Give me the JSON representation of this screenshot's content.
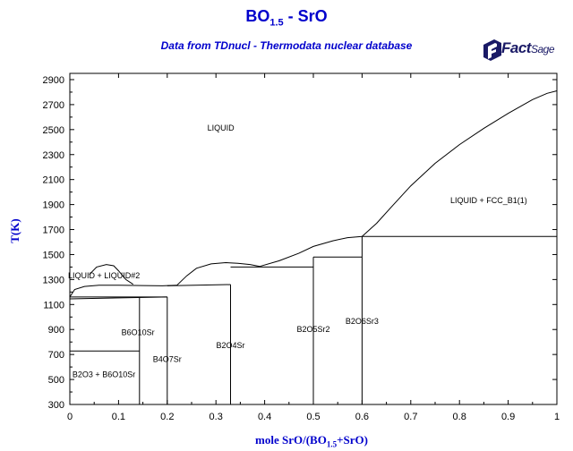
{
  "header": {
    "title_main": "BO",
    "title_sub": "1.5",
    "title_rest": " - SrO",
    "subtitle": "Data from TDnucl - Thermodata nuclear database"
  },
  "logo": {
    "text_fact": "Fact",
    "text_sage": "Sage",
    "icon": "factsage-logo-icon"
  },
  "chart_data": {
    "type": "line",
    "xlabel_main": "mole SrO/(BO",
    "xlabel_sub": "1.5",
    "xlabel_rest": "+SrO)",
    "ylabel": "T(K)",
    "xlim": [
      0,
      1
    ],
    "ylim": [
      300,
      2950
    ],
    "x_ticks": [
      0,
      0.1,
      0.2,
      0.3,
      0.4,
      0.5,
      0.6,
      0.7,
      0.8,
      0.9,
      1
    ],
    "x_tick_labels": [
      "0",
      "0.1",
      "0.2",
      "0.3",
      "0.4",
      "0.5",
      "0.6",
      "0.7",
      "0.8",
      "0.9",
      "1"
    ],
    "y_ticks": [
      300,
      500,
      700,
      900,
      1100,
      1300,
      1500,
      1700,
      1900,
      2100,
      2300,
      2500,
      2700,
      2900
    ],
    "y_tick_labels": [
      "300",
      "500",
      "700",
      "900",
      "1100",
      "1300",
      "1500",
      "1700",
      "1900",
      "2100",
      "2300",
      "2500",
      "2700",
      "2900"
    ],
    "grid": false,
    "curves": [
      {
        "points": [
          [
            0,
            1160
          ],
          [
            0.01,
            1220
          ],
          [
            0.03,
            1245
          ],
          [
            0.06,
            1255
          ],
          [
            0.1,
            1255
          ],
          [
            0.15,
            1252
          ],
          [
            0.19,
            1250
          ],
          [
            0.22,
            1255
          ]
        ]
      },
      {
        "points": [
          [
            0.04,
            1340
          ],
          [
            0.055,
            1400
          ],
          [
            0.075,
            1420
          ],
          [
            0.09,
            1410
          ],
          [
            0.1,
            1370
          ],
          [
            0.115,
            1300
          ],
          [
            0.13,
            1262
          ]
        ]
      },
      {
        "points": [
          [
            0.22,
            1255
          ],
          [
            0.24,
            1330
          ],
          [
            0.26,
            1390
          ],
          [
            0.29,
            1425
          ],
          [
            0.32,
            1435
          ],
          [
            0.345,
            1430
          ],
          [
            0.37,
            1420
          ],
          [
            0.39,
            1405
          ]
        ]
      },
      {
        "points": [
          [
            0.39,
            1405
          ],
          [
            0.43,
            1450
          ],
          [
            0.47,
            1510
          ],
          [
            0.5,
            1565
          ],
          [
            0.54,
            1610
          ],
          [
            0.57,
            1635
          ],
          [
            0.6,
            1645
          ]
        ]
      },
      {
        "points": [
          [
            0.6,
            1645
          ],
          [
            0.63,
            1750
          ],
          [
            0.66,
            1880
          ],
          [
            0.7,
            2050
          ],
          [
            0.75,
            2230
          ],
          [
            0.8,
            2380
          ],
          [
            0.85,
            2510
          ],
          [
            0.9,
            2630
          ],
          [
            0.95,
            2740
          ],
          [
            0.98,
            2790
          ],
          [
            1,
            2810
          ]
        ]
      },
      {
        "points": [
          [
            0,
            1145
          ],
          [
            0.2,
            1160
          ]
        ]
      },
      {
        "points": [
          [
            0,
            1160
          ],
          [
            0.2,
            1160
          ]
        ]
      },
      {
        "points": [
          [
            0.2,
            1160
          ],
          [
            0.2,
            300
          ]
        ]
      },
      {
        "points": [
          [
            0.2,
            1250
          ],
          [
            0.33,
            1260
          ]
        ]
      },
      {
        "points": [
          [
            0.33,
            1260
          ],
          [
            0.33,
            300
          ]
        ]
      },
      {
        "points": [
          [
            0.33,
            1400
          ],
          [
            0.5,
            1400
          ]
        ]
      },
      {
        "points": [
          [
            0.5,
            1480
          ],
          [
            0.5,
            300
          ]
        ]
      },
      {
        "points": [
          [
            0.5,
            1480
          ],
          [
            0.6,
            1480
          ]
        ]
      },
      {
        "points": [
          [
            0.6,
            1645
          ],
          [
            0.6,
            300
          ]
        ]
      },
      {
        "points": [
          [
            0.6,
            1645
          ],
          [
            1,
            1645
          ]
        ]
      },
      {
        "points": [
          [
            0,
            728
          ],
          [
            0.143,
            728
          ]
        ]
      },
      {
        "points": [
          [
            0.143,
            1160
          ],
          [
            0.143,
            300
          ]
        ]
      }
    ],
    "region_labels": [
      {
        "text": "LIQUID",
        "x": 0.31,
        "y": 2490
      },
      {
        "text": "LIQUID + FCC_B1(1)",
        "x": 0.86,
        "y": 1910
      },
      {
        "text": "LIQUID + LIQUID#2",
        "x": 0.07,
        "y": 1310
      },
      {
        "text": "B6O10Sr",
        "x": 0.14,
        "y": 855
      },
      {
        "text": "B2O3 + B6O10Sr",
        "x": 0.07,
        "y": 520
      },
      {
        "text": "B4O7Sr",
        "x": 0.2,
        "y": 640
      },
      {
        "text": "B2O4Sr",
        "x": 0.33,
        "y": 750
      },
      {
        "text": "B2O5Sr2",
        "x": 0.5,
        "y": 880
      },
      {
        "text": "B2O6Sr3",
        "x": 0.6,
        "y": 945
      }
    ]
  }
}
